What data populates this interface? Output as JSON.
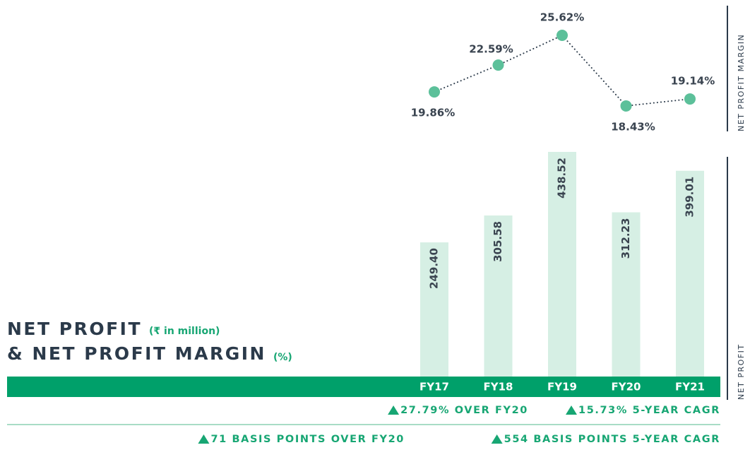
{
  "title": {
    "line1": "NET PROFIT",
    "unit1": "(₹ in million)",
    "line2": "& NET PROFIT MARGIN",
    "unit2": "(%)"
  },
  "chart_data": [
    {
      "type": "line",
      "axis_label": "NET PROFIT MARGIN",
      "values": [
        19.86,
        22.59,
        25.62,
        18.43,
        19.14
      ],
      "value_labels": [
        "19.86%",
        "22.59%",
        "25.62%",
        "18.43%",
        "19.14%"
      ],
      "color": "#5cc09a"
    },
    {
      "type": "bar",
      "axis_label": "NET PROFIT",
      "categories": [
        "FY17",
        "FY18",
        "FY19",
        "FY20",
        "FY21"
      ],
      "values": [
        249.4,
        305.58,
        438.52,
        312.23,
        399.01
      ],
      "value_labels": [
        "249.40",
        "305.58",
        "438.52",
        "312.23",
        "399.01"
      ],
      "color": "#d6efe4"
    }
  ],
  "highlights": [
    [
      "27.79% OVER FY20",
      "15.73% 5-YEAR CAGR"
    ],
    [
      "71 BASIS POINTS OVER FY20",
      "554 BASIS POINTS 5-YEAR CAGR"
    ]
  ]
}
